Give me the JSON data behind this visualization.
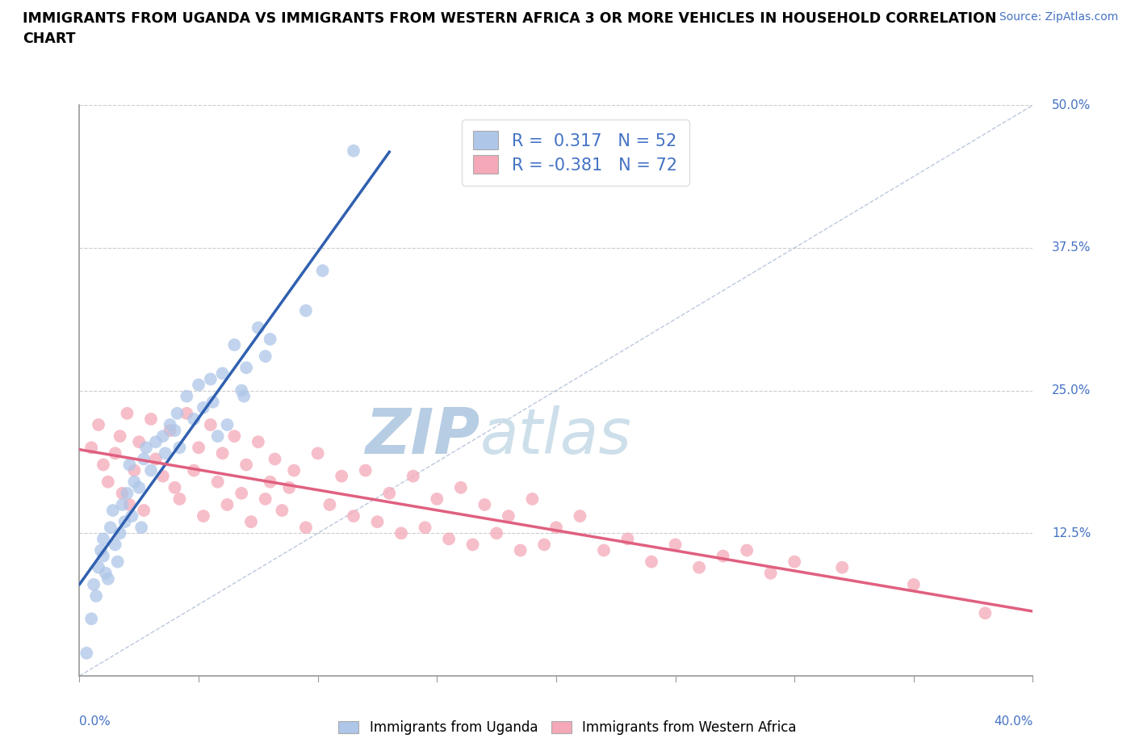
{
  "title_line1": "IMMIGRANTS FROM UGANDA VS IMMIGRANTS FROM WESTERN AFRICA 3 OR MORE VEHICLES IN HOUSEHOLD CORRELATION",
  "title_line2": "CHART",
  "source_text": "Source: ZipAtlas.com",
  "xlim": [
    0,
    40
  ],
  "ylim": [
    0,
    50
  ],
  "yticks": [
    0,
    12.5,
    25.0,
    37.5,
    50.0
  ],
  "xticks": [
    0,
    5,
    10,
    15,
    20,
    25,
    30,
    35,
    40
  ],
  "r_uganda": 0.317,
  "n_uganda": 52,
  "r_western": -0.381,
  "n_western": 72,
  "uganda_color": "#aec6e8",
  "western_color": "#f4a8b8",
  "uganda_line_color": "#3060b0",
  "western_line_color": "#e06080",
  "watermark_zip": "ZIP",
  "watermark_atlas": "atlas",
  "watermark_color": "#c8ddf0",
  "legend_label_uganda": "Immigrants from Uganda",
  "legend_label_western": "Immigrants from Western Africa",
  "uganda_scatter_x": [
    0.3,
    0.5,
    0.6,
    0.7,
    0.8,
    0.9,
    1.0,
    1.0,
    1.1,
    1.2,
    1.3,
    1.4,
    1.5,
    1.6,
    1.7,
    1.8,
    1.9,
    2.0,
    2.1,
    2.2,
    2.3,
    2.5,
    2.6,
    2.7,
    2.8,
    3.0,
    3.2,
    3.5,
    3.6,
    3.8,
    4.0,
    4.1,
    4.2,
    4.5,
    4.8,
    5.0,
    5.2,
    5.5,
    5.6,
    5.8,
    6.0,
    6.2,
    6.5,
    6.8,
    6.9,
    7.0,
    7.5,
    7.8,
    8.0,
    9.5,
    10.2,
    11.5
  ],
  "uganda_scatter_y": [
    2.0,
    5.0,
    8.0,
    7.0,
    9.5,
    11.0,
    10.5,
    12.0,
    9.0,
    8.5,
    13.0,
    14.5,
    11.5,
    10.0,
    12.5,
    15.0,
    13.5,
    16.0,
    18.5,
    14.0,
    17.0,
    16.5,
    13.0,
    19.0,
    20.0,
    18.0,
    20.5,
    21.0,
    19.5,
    22.0,
    21.5,
    23.0,
    20.0,
    24.5,
    22.5,
    25.5,
    23.5,
    26.0,
    24.0,
    21.0,
    26.5,
    22.0,
    29.0,
    25.0,
    24.5,
    27.0,
    30.5,
    28.0,
    29.5,
    32.0,
    35.5,
    46.0
  ],
  "western_scatter_x": [
    0.5,
    0.8,
    1.0,
    1.2,
    1.5,
    1.7,
    1.8,
    2.0,
    2.1,
    2.3,
    2.5,
    2.7,
    3.0,
    3.2,
    3.5,
    3.8,
    4.0,
    4.2,
    4.5,
    4.8,
    5.0,
    5.2,
    5.5,
    5.8,
    6.0,
    6.2,
    6.5,
    6.8,
    7.0,
    7.2,
    7.5,
    7.8,
    8.0,
    8.2,
    8.5,
    8.8,
    9.0,
    9.5,
    10.0,
    10.5,
    11.0,
    11.5,
    12.0,
    12.5,
    13.0,
    13.5,
    14.0,
    14.5,
    15.0,
    15.5,
    16.0,
    16.5,
    17.0,
    17.5,
    18.0,
    18.5,
    19.0,
    19.5,
    20.0,
    21.0,
    22.0,
    23.0,
    24.0,
    25.0,
    26.0,
    27.0,
    28.0,
    29.0,
    30.0,
    32.0,
    35.0,
    38.0
  ],
  "western_scatter_y": [
    20.0,
    22.0,
    18.5,
    17.0,
    19.5,
    21.0,
    16.0,
    23.0,
    15.0,
    18.0,
    20.5,
    14.5,
    22.5,
    19.0,
    17.5,
    21.5,
    16.5,
    15.5,
    23.0,
    18.0,
    20.0,
    14.0,
    22.0,
    17.0,
    19.5,
    15.0,
    21.0,
    16.0,
    18.5,
    13.5,
    20.5,
    15.5,
    17.0,
    19.0,
    14.5,
    16.5,
    18.0,
    13.0,
    19.5,
    15.0,
    17.5,
    14.0,
    18.0,
    13.5,
    16.0,
    12.5,
    17.5,
    13.0,
    15.5,
    12.0,
    16.5,
    11.5,
    15.0,
    12.5,
    14.0,
    11.0,
    15.5,
    11.5,
    13.0,
    14.0,
    11.0,
    12.0,
    10.0,
    11.5,
    9.5,
    10.5,
    11.0,
    9.0,
    10.0,
    9.5,
    8.0,
    5.5
  ]
}
